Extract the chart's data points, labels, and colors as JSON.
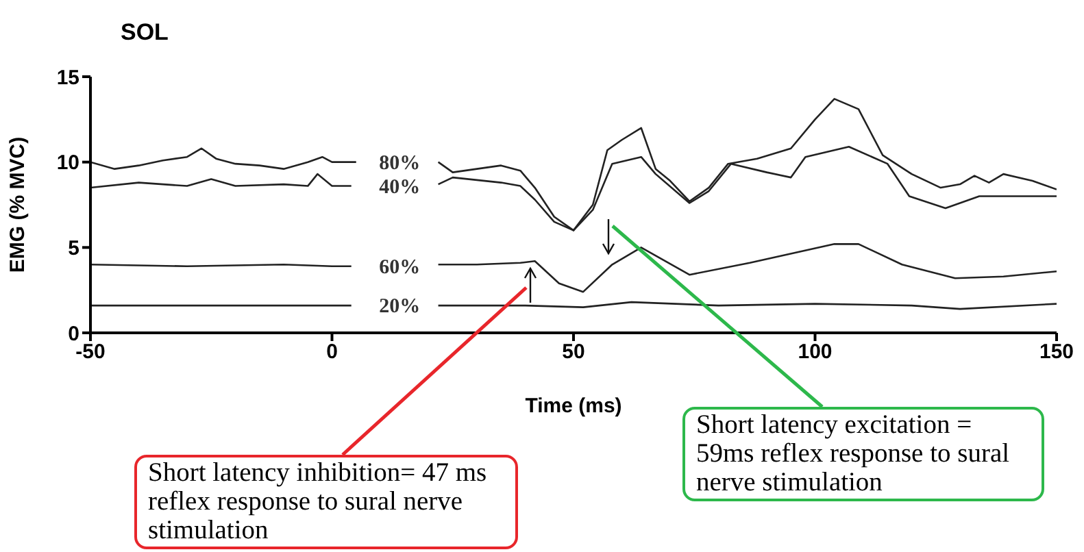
{
  "chart_data": {
    "type": "line",
    "title": "SOL",
    "xlabel": "Time (ms)",
    "ylabel": "EMG (% MVC)",
    "xlim": [
      -50,
      150
    ],
    "xticks": [
      -50,
      0,
      50,
      100,
      150
    ],
    "ylim": [
      0,
      15
    ],
    "yticks": [
      0,
      5,
      10,
      15
    ],
    "grid": false,
    "legend": false,
    "marker": "none",
    "line_style": "solid",
    "series": [
      {
        "name": "80%",
        "color": "#222222",
        "x": [
          -50,
          -45,
          -40,
          -35,
          -30,
          -27,
          -24,
          -20,
          -15,
          -10,
          -5,
          -2,
          0,
          5,
          14,
          20,
          22,
          25,
          30,
          35,
          39,
          42,
          46,
          50,
          54,
          57,
          60,
          64,
          67,
          70,
          74,
          78,
          82,
          88,
          95,
          100,
          104,
          109,
          114,
          120,
          126,
          130,
          133,
          136,
          139,
          145,
          150
        ],
        "values": [
          10.0,
          9.6,
          9.8,
          10.1,
          10.3,
          10.8,
          10.2,
          9.9,
          9.8,
          9.6,
          10.0,
          10.3,
          10.0,
          10.0,
          null,
          null,
          10.0,
          9.4,
          9.6,
          9.8,
          9.5,
          8.5,
          6.8,
          6.0,
          7.5,
          10.7,
          11.3,
          12.0,
          9.6,
          8.9,
          7.7,
          8.5,
          9.9,
          10.2,
          10.8,
          12.5,
          13.7,
          13.1,
          10.4,
          9.3,
          8.5,
          8.7,
          9.2,
          8.8,
          9.3,
          8.9,
          8.4
        ]
      },
      {
        "name": "40%",
        "color": "#222222",
        "x": [
          -50,
          -40,
          -30,
          -25,
          -20,
          -10,
          -5,
          -3,
          0,
          4,
          14,
          22,
          25,
          35,
          39,
          42,
          46,
          50,
          54,
          58,
          64,
          67,
          74,
          78,
          82.6,
          90,
          95,
          98,
          107,
          115,
          119.5,
          127,
          134,
          140,
          150
        ],
        "values": [
          8.5,
          8.8,
          8.6,
          9.0,
          8.6,
          8.7,
          8.6,
          9.3,
          8.6,
          8.6,
          null,
          8.7,
          9.1,
          8.8,
          8.6,
          7.8,
          6.5,
          6.0,
          7.2,
          9.9,
          10.3,
          9.3,
          7.6,
          8.3,
          9.9,
          9.4,
          9.1,
          10.3,
          10.9,
          9.9,
          8.0,
          7.3,
          8.0,
          8.0,
          8.0
        ]
      },
      {
        "name": "60%",
        "color": "#222222",
        "x": [
          -50,
          -30,
          -10,
          0,
          4,
          14,
          22,
          30,
          39,
          42,
          47,
          52,
          58,
          64,
          74,
          86.5,
          104,
          109,
          118,
          129,
          139,
          150
        ],
        "values": [
          4.0,
          3.9,
          4.0,
          3.9,
          3.9,
          null,
          4.0,
          4.0,
          4.1,
          4.2,
          2.9,
          2.4,
          4.0,
          5.0,
          3.4,
          4.1,
          5.2,
          5.2,
          4.0,
          3.2,
          3.3,
          3.6
        ]
      },
      {
        "name": "20%",
        "color": "#222222",
        "x": [
          -50,
          -20,
          0,
          4,
          14,
          22,
          30,
          40,
          52,
          62,
          80,
          100,
          120,
          130,
          150
        ],
        "values": [
          1.6,
          1.6,
          1.6,
          1.6,
          null,
          1.6,
          1.6,
          1.6,
          1.5,
          1.8,
          1.6,
          1.7,
          1.6,
          1.4,
          1.7
        ]
      }
    ],
    "annotations": [
      "Short latency inhibition= 47 ms reflex response to sural nerve stimulation",
      "Short latency excitation = 59ms reflex response to sural nerve stimulation"
    ]
  }
}
